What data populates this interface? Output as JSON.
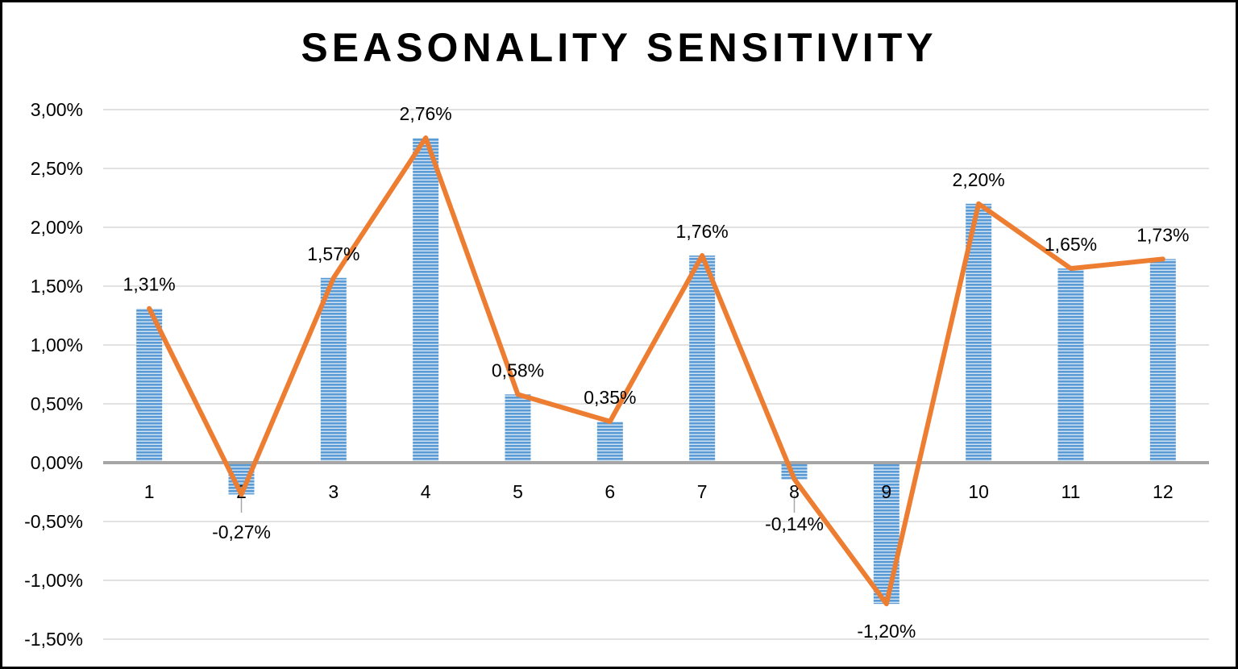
{
  "chart_data": {
    "type": "bar",
    "title": "SEASONALITY SENSITIVITY",
    "xlabel": "",
    "ylabel": "",
    "categories": [
      "1",
      "2",
      "3",
      "4",
      "5",
      "6",
      "7",
      "8",
      "9",
      "10",
      "11",
      "12"
    ],
    "values": [
      1.31,
      -0.27,
      1.57,
      2.76,
      0.58,
      0.35,
      1.76,
      -0.14,
      -1.2,
      2.2,
      1.65,
      1.73
    ],
    "data_labels": [
      "1,31%",
      "-0,27%",
      "1,57%",
      "2,76%",
      "0,58%",
      "0,35%",
      "1,76%",
      "-0,14%",
      "-1,20%",
      "2,20%",
      "1,65%",
      "1,73%"
    ],
    "overlay": "line",
    "ylim": [
      -1.5,
      3.0
    ],
    "yticks": [
      3.0,
      2.5,
      2.0,
      1.5,
      1.0,
      0.5,
      0.0,
      -0.5,
      -1.0,
      -1.5
    ],
    "ytick_labels": [
      "3,00%",
      "2,50%",
      "2,00%",
      "1,50%",
      "1,00%",
      "0,50%",
      "0,00%",
      "-0,50%",
      "-1,00%",
      "-1,50%"
    ],
    "grid": true,
    "legend": "none",
    "colors": {
      "bar": "#5b9bd5",
      "bar_stripe": "#ffffff",
      "line": "#ed7d31",
      "grid": "#d9d9d9",
      "zero_axis": "#a6a6a6",
      "frame": "#000000"
    }
  }
}
